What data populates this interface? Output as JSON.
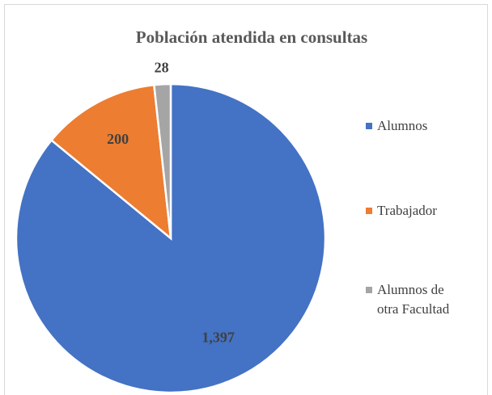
{
  "chart_data": {
    "type": "pie",
    "title": "Población atendida en consultas",
    "categories": [
      "Alumnos",
      "Trabajador",
      "Alumnos de otra Facultad"
    ],
    "values": [
      1397,
      200,
      28
    ],
    "value_labels": [
      "1,397",
      "200",
      "28"
    ],
    "colors": [
      "#4472c4",
      "#ed7d31",
      "#a5a5a5"
    ],
    "legend": "right"
  }
}
